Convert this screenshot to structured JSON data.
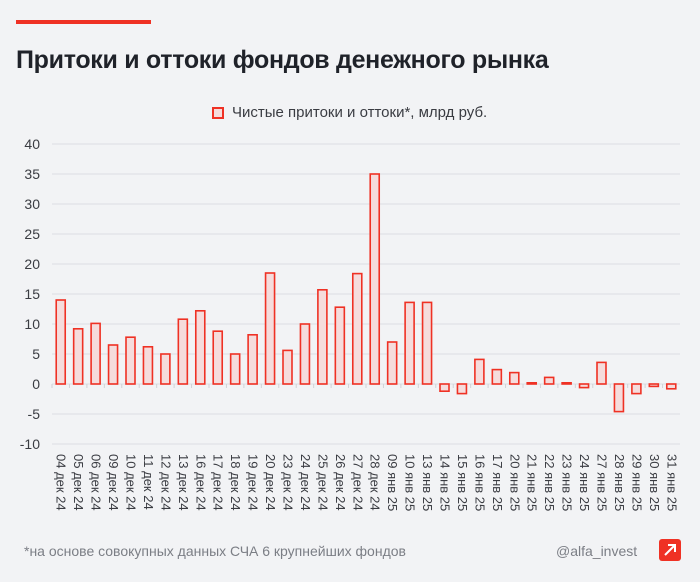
{
  "title": "Притоки и оттоки фондов денежного рынка",
  "footnote": "*на основе совокупных данных СЧА 6 крупнейших фондов",
  "handle": "@alfa_invest",
  "colors": {
    "accent": "#ef3124",
    "bar_fill": "#f5dcdc",
    "grid": "#dcdee2",
    "text": "#1f2229"
  },
  "chart_data": {
    "type": "bar",
    "legend": "top-center",
    "grid": true,
    "ylim": [
      -10,
      40
    ],
    "yticks": [
      "40",
      "35",
      "30",
      "25",
      "20",
      "15",
      "10",
      "5",
      "0",
      "-5",
      "-10"
    ],
    "categories": [
      "04 дек 24",
      "05 дек 24",
      "06 дек 24",
      "09 дек 24",
      "10 дек 24",
      "11 дек 24",
      "12 дек 24",
      "13 дек 24",
      "16 дек 24",
      "17 дек 24",
      "18 дек 24",
      "19 дек 24",
      "20 дек 24",
      "23 дек 24",
      "24 дек 24",
      "25 дек 24",
      "26 дек 24",
      "27 дек 24",
      "28 дек 24",
      "09 янв 25",
      "10 янв 25",
      "13 янв 25",
      "14 янв 25",
      "15 янв 25",
      "16 янв 25",
      "17 янв 25",
      "20 янв 25",
      "21 янв 25",
      "22 янв 25",
      "23 янв 25",
      "24 янв 25",
      "27 янв 25",
      "28 янв 25",
      "29 янв 25",
      "30 янв 25",
      "31 янв 25"
    ],
    "series": [
      {
        "name": "Чистые притоки и оттоки*, млрд руб.",
        "values": [
          14.0,
          9.2,
          10.1,
          6.5,
          7.8,
          6.2,
          5.0,
          10.8,
          12.2,
          8.8,
          5.0,
          8.2,
          18.5,
          5.6,
          10.0,
          15.7,
          12.8,
          18.4,
          35.0,
          7.0,
          13.6,
          13.6,
          -1.2,
          -1.6,
          4.1,
          2.4,
          1.9,
          0.2,
          1.1,
          0.2,
          -0.6,
          3.6,
          -4.6,
          -1.6,
          -0.4,
          -0.8
        ]
      }
    ]
  }
}
